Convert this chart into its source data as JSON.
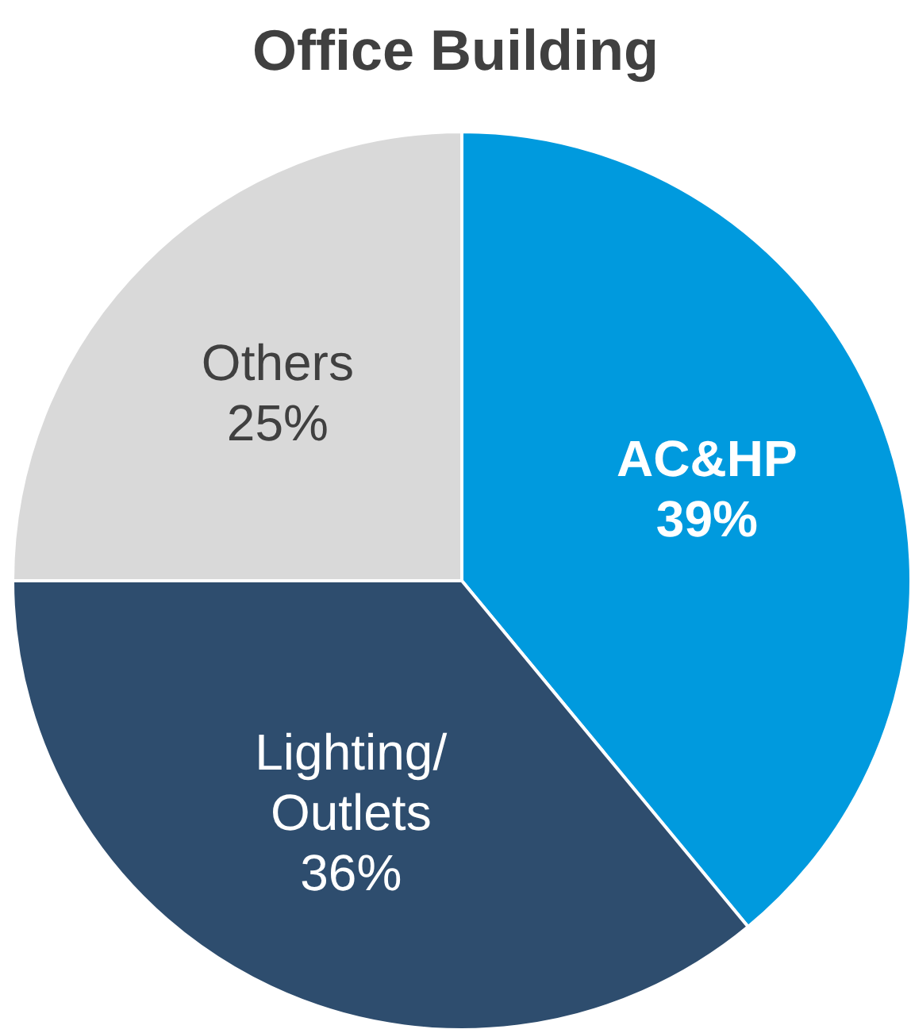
{
  "chart_data": {
    "type": "pie",
    "title": "Office Building",
    "categories": [
      "AC&HP",
      "Lighting/\nOutlets",
      "Others"
    ],
    "values": [
      39,
      36,
      25
    ],
    "colors": [
      "#009ade",
      "#2e4d6e",
      "#d9d9d9"
    ],
    "value_labels": [
      "39%",
      "36%",
      "25%"
    ]
  }
}
